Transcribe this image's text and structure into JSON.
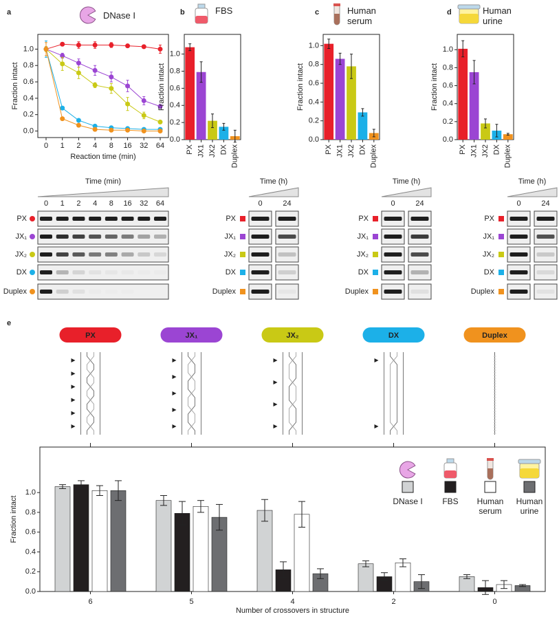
{
  "chart_data": [
    {
      "type": "line",
      "panel_label": "a",
      "title": "DNase I",
      "xlabel": "Reaction time (min)",
      "ylabel": "Fraction intact",
      "categories": [
        "0",
        "1",
        "2",
        "4",
        "8",
        "16",
        "32",
        "64"
      ],
      "ylim": [
        -0.08,
        1.18
      ],
      "yticks": [
        {
          "value": 0,
          "label": "0.0"
        },
        0.2,
        0.4,
        0.6,
        0.8,
        {
          "value": 1,
          "label": "1.0"
        }
      ],
      "series": [
        {
          "color": "#e8202a",
          "values": [
            1.0,
            1.06,
            1.05,
            1.05,
            1.05,
            1.04,
            1.03,
            1.0
          ],
          "errors": [
            0.03,
            0.02,
            0.04,
            0.04,
            0.03,
            0.02,
            0.02,
            0.05
          ]
        },
        {
          "color": "#9b45d3",
          "values": [
            1.0,
            0.92,
            0.83,
            0.74,
            0.66,
            0.55,
            0.37,
            0.3
          ],
          "errors": [
            0.03,
            0.03,
            0.05,
            0.06,
            0.06,
            0.07,
            0.05,
            0.02
          ]
        },
        {
          "color": "#c9c915",
          "values": [
            1.0,
            0.82,
            0.71,
            0.56,
            0.52,
            0.33,
            0.19,
            0.11
          ],
          "errors": [
            0.03,
            0.08,
            0.07,
            0.03,
            0.06,
            0.08,
            0.04,
            0.02
          ]
        },
        {
          "color": "#1cb0e8",
          "values": [
            1.0,
            0.28,
            0.13,
            0.06,
            0.04,
            0.03,
            0.02,
            0.02
          ],
          "errors": [
            0.1,
            0.02,
            0.01,
            0.01,
            0.01,
            0.01,
            0.01,
            0.01
          ]
        },
        {
          "color": "#f0921e",
          "values": [
            1.0,
            0.15,
            0.07,
            0.02,
            0.01,
            0.01,
            0.0,
            0.0
          ],
          "errors": [
            0.08,
            0.01,
            0.01,
            0.01,
            0.01,
            0.01,
            0.01,
            0.01
          ]
        }
      ]
    },
    {
      "type": "bar",
      "panel_label": "b",
      "title": "FBS",
      "ylabel": "Fraction intact",
      "categories": [
        "PX",
        "JX1",
        "JX2",
        "DX",
        "Duplex"
      ],
      "values": [
        1.08,
        0.79,
        0.22,
        0.15,
        0.04
      ],
      "errors": [
        0.04,
        0.12,
        0.08,
        0.04,
        0.07
      ],
      "colors": [
        "#e8202a",
        "#9b45d3",
        "#c9c915",
        "#1cb0e8",
        "#f0921e"
      ],
      "ylim": [
        0,
        1.23
      ],
      "yticks": [
        {
          "value": 0,
          "label": "0.0"
        },
        0.2,
        0.4,
        0.6,
        0.8,
        {
          "value": 1,
          "label": "1.0"
        }
      ]
    },
    {
      "type": "bar",
      "panel_label": "c",
      "title": "Human serum",
      "ylabel": "Fraction intact",
      "categories": [
        "PX",
        "JX1",
        "JX2",
        "DX",
        "Duplex"
      ],
      "values": [
        1.02,
        0.86,
        0.78,
        0.29,
        0.07
      ],
      "errors": [
        0.05,
        0.06,
        0.13,
        0.04,
        0.04
      ],
      "colors": [
        "#e8202a",
        "#9b45d3",
        "#c9c915",
        "#1cb0e8",
        "#f0921e"
      ],
      "ylim": [
        0,
        1.12
      ],
      "yticks": [
        {
          "value": 0,
          "label": "0.0"
        },
        0.2,
        0.4,
        0.6,
        0.8,
        {
          "value": 1,
          "label": "1.0"
        }
      ]
    },
    {
      "type": "bar",
      "panel_label": "d",
      "title": "Human urine",
      "ylabel": "Fraction intact",
      "categories": [
        "PX",
        "JX1",
        "JX2",
        "DX",
        "Duplex"
      ],
      "values": [
        1.01,
        0.75,
        0.18,
        0.1,
        0.06
      ],
      "errors": [
        0.09,
        0.13,
        0.05,
        0.07,
        0.01
      ],
      "colors": [
        "#e8202a",
        "#9b45d3",
        "#c9c915",
        "#1cb0e8",
        "#f0921e"
      ],
      "ylim": [
        0,
        1.17
      ],
      "yticks": [
        {
          "value": 0,
          "label": "0.0"
        },
        0.2,
        0.4,
        0.6,
        0.8,
        {
          "value": 1,
          "label": "1.0"
        }
      ]
    },
    {
      "type": "bar",
      "panel_label": "e",
      "xlabel": "Number of crossovers in structure",
      "ylabel": "Fraction intact",
      "categories": [
        "6",
        "5",
        "4",
        "2",
        "0"
      ],
      "ylim": [
        0,
        1.46
      ],
      "yticks": [
        {
          "value": 0,
          "label": "0.0"
        },
        0.2,
        0.4,
        0.6,
        0.8,
        {
          "value": 1,
          "label": "1.0"
        }
      ],
      "series": [
        {
          "name": "DNase I",
          "color": "#d1d3d4",
          "values": [
            1.06,
            0.92,
            0.82,
            0.28,
            0.15
          ],
          "errors": [
            0.02,
            0.05,
            0.11,
            0.03,
            0.02
          ]
        },
        {
          "name": "FBS",
          "color": "#231f20",
          "values": [
            1.08,
            0.79,
            0.22,
            0.15,
            0.04
          ],
          "errors": [
            0.04,
            0.12,
            0.08,
            0.04,
            0.07
          ]
        },
        {
          "name": "Human serum",
          "color": "#ffffff",
          "values": [
            1.02,
            0.86,
            0.78,
            0.29,
            0.07
          ],
          "errors": [
            0.05,
            0.06,
            0.13,
            0.04,
            0.04
          ]
        },
        {
          "name": "Human urine",
          "color": "#6d6e71",
          "values": [
            1.02,
            0.75,
            0.18,
            0.1,
            0.06
          ],
          "errors": [
            0.1,
            0.13,
            0.05,
            0.07,
            0.01
          ]
        }
      ]
    }
  ],
  "gels": [
    {
      "time_label": "Time (min)",
      "lanes": [
        "0",
        "1",
        "2",
        "4",
        "8",
        "16",
        "32",
        "64"
      ],
      "rows": [
        "PX",
        "JX₁",
        "JX₂",
        "DX",
        "Duplex"
      ]
    },
    {
      "time_label": "Time (h)",
      "lanes": [
        "0",
        "24"
      ],
      "rows": [
        "PX",
        "JX₁",
        "JX₂",
        "DX",
        "Duplex"
      ]
    },
    {
      "time_label": "Time (h)",
      "lanes": [
        "0",
        "24"
      ],
      "rows": [
        "PX",
        "JX₁",
        "JX₂",
        "DX",
        "Duplex"
      ]
    },
    {
      "time_label": "Time (h)",
      "lanes": [
        "0",
        "24"
      ],
      "rows": [
        "PX",
        "JX₁",
        "JX₂",
        "DX",
        "Duplex"
      ]
    }
  ],
  "structures": [
    {
      "label": "PX",
      "color": "#e8202a"
    },
    {
      "label": "JX₁",
      "color": "#9b45d3"
    },
    {
      "label": "JX₂",
      "color": "#c9c915"
    },
    {
      "label": "DX",
      "color": "#1cb0e8"
    },
    {
      "label": "Duplex",
      "color": "#f0921e"
    }
  ]
}
